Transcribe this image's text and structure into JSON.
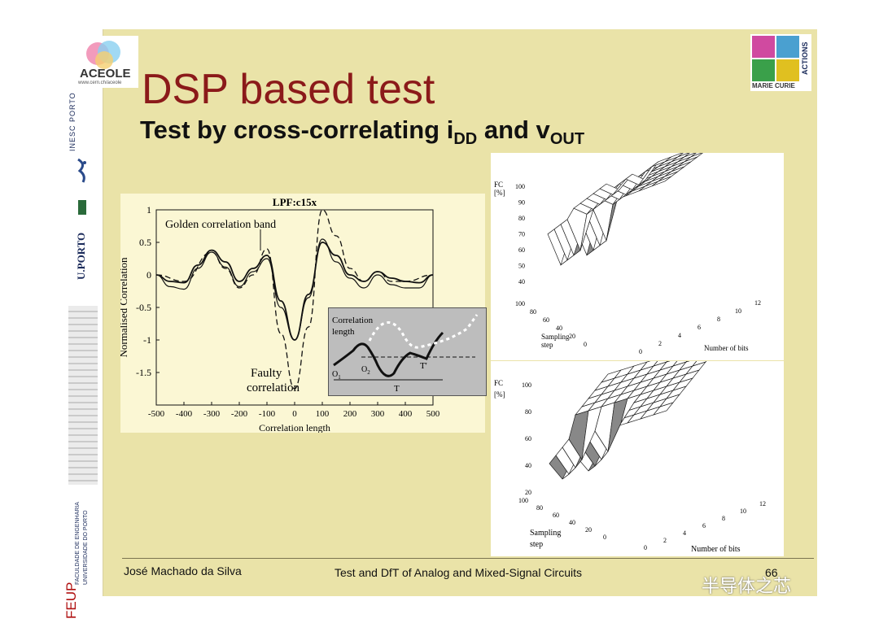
{
  "slide": {
    "title": "DSP based test",
    "subtitle_main": "Test by cross-correlating i",
    "subtitle_sub1": "DD",
    "subtitle_and": " and v",
    "subtitle_sub2": "OUT",
    "footer_author": "José Machado da Silva",
    "footer_course": "Test and DfT of Analog and Mixed-Signal Circuits",
    "page_number": "66"
  },
  "logos": {
    "aceole_name": "ACEOLE",
    "aceole_url": "www.cern.ch/aceole",
    "inesc": "INESC PORTO",
    "uporto": "U.PORTO",
    "feup": "FEUP",
    "feup_full_1": "FACULDADE DE ENGENHARIA",
    "feup_full_2": "UNIVERSIDADE DO PORTO",
    "marie_curie": "MARIE CURIE",
    "actions": "ACTIONS"
  },
  "watermark": "半导体之芯",
  "chart_data": [
    {
      "type": "line",
      "title": "LPF:c15x",
      "xlabel": "Correlation length",
      "ylabel": "Normalised Correlation",
      "xlim": [
        -500,
        500
      ],
      "ylim": [
        -2,
        1
      ],
      "x_ticks": [
        "-500",
        "-400",
        "-300",
        "-200",
        "-100",
        "0",
        "100",
        "200",
        "300",
        "400",
        "500"
      ],
      "y_ticks": [
        "1",
        "0.5",
        "0",
        "-0.5",
        "-1",
        "-1.5"
      ],
      "annotations": {
        "golden": "Golden correlation band",
        "faulty_1": "Faulty",
        "faulty_2": "correlation"
      },
      "series": [
        {
          "x": [
            -500,
            -450,
            -400,
            -350,
            -300,
            -250,
            -200,
            -150,
            -100,
            -50,
            0,
            50,
            100,
            150,
            200,
            250,
            300,
            350,
            400,
            450,
            500
          ],
          "y": [
            0,
            -0.1,
            -0.12,
            0.15,
            0.38,
            0.2,
            -0.1,
            0.1,
            0.3,
            -0.4,
            -1.0,
            -0.3,
            0.5,
            0.3,
            0,
            -0.1,
            0.05,
            -0.05,
            -0.1,
            -0.12,
            0
          ]
        },
        {
          "x": [
            -500,
            -450,
            -400,
            -350,
            -300,
            -250,
            -200,
            -150,
            -100,
            -50,
            0,
            50,
            100,
            150,
            200,
            250,
            300,
            350,
            400,
            450,
            500
          ],
          "y": [
            0,
            -0.18,
            -0.22,
            0.1,
            0.35,
            0.12,
            -0.18,
            0.05,
            0.25,
            -0.5,
            -1.0,
            -0.35,
            0.55,
            0.2,
            -0.05,
            -0.2,
            0,
            -0.15,
            -0.2,
            -0.2,
            0
          ]
        },
        {
          "x": [
            -500,
            -400,
            -300,
            -250,
            -200,
            -150,
            -100,
            -50,
            0,
            50,
            100,
            150,
            200,
            250,
            300,
            350,
            400,
            500
          ],
          "y": [
            0,
            -0.1,
            0.35,
            0.1,
            -0.2,
            0.0,
            0.4,
            -0.9,
            -1.75,
            -0.8,
            1.0,
            0.6,
            0.1,
            -0.1,
            0.05,
            -0.1,
            -0.1,
            0
          ]
        }
      ],
      "inset": {
        "label_1": "Correlation",
        "label_2": "length",
        "o1": "O",
        "o2": "O",
        "o1_sub": "1",
        "o2_sub": "2",
        "t_prime": "T'",
        "t": "T"
      }
    },
    {
      "type": "surface",
      "zlabel_1": "FC",
      "zlabel_2": "[%]",
      "z_ticks": [
        "100",
        "90",
        "80",
        "70",
        "60",
        "50",
        "40"
      ],
      "y_label_1": "Sampling",
      "y_label_2": "step",
      "y_ticks": [
        "100",
        "80",
        "60",
        "40",
        "20",
        "0"
      ],
      "x_label": "Number of bits",
      "x_ticks": [
        "0",
        "2",
        "4",
        "6",
        "8",
        "10",
        "12"
      ]
    },
    {
      "type": "surface",
      "zlabel_1": "FC",
      "zlabel_2": "[%]",
      "z_ticks": [
        "100",
        "80",
        "60",
        "40",
        "20"
      ],
      "y_label_1": "Sampling",
      "y_label_2": "step",
      "y_ticks": [
        "100",
        "80",
        "60",
        "40",
        "20",
        "0"
      ],
      "x_label": "Number of bits",
      "x_ticks": [
        "0",
        "2",
        "4",
        "6",
        "8",
        "10",
        "12"
      ]
    }
  ]
}
